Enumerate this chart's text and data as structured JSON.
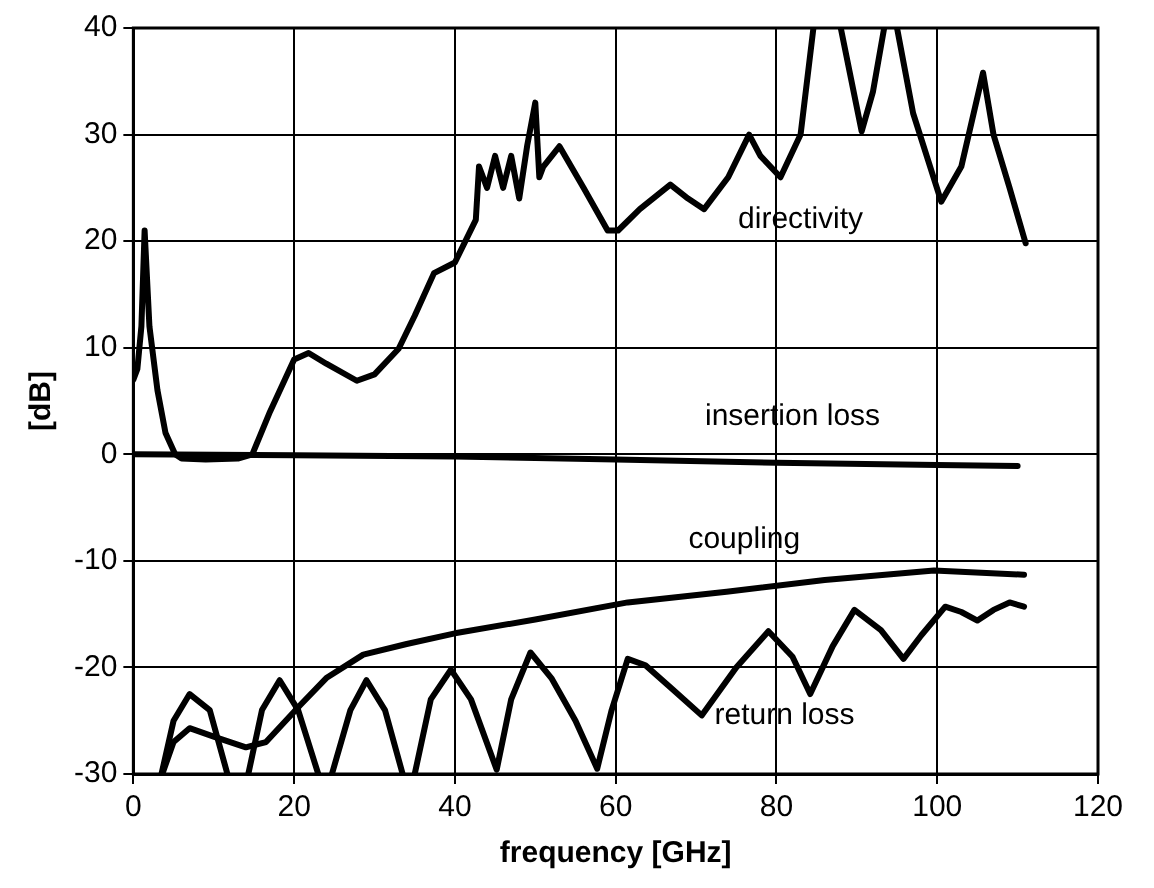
{
  "chart_data": {
    "type": "line",
    "xlabel": "frequency [GHz]",
    "ylabel": "[dB]",
    "xlim": [
      0,
      120
    ],
    "xticks": [
      0,
      20,
      40,
      60,
      80,
      100,
      120
    ],
    "ylim": [
      -30,
      40
    ],
    "yticks": [
      -30,
      -20,
      -10,
      0,
      10,
      20,
      30,
      40
    ],
    "grid": true,
    "legend": false,
    "marker": "none",
    "line_style": "solid",
    "series": [
      {
        "name": "directivity",
        "color": "#000000",
        "x": [
          0,
          0.5,
          1,
          1.4,
          2,
          3,
          4,
          5.2,
          6,
          9,
          13,
          14.8,
          17,
          20,
          21.8,
          24,
          27.8,
          30,
          33,
          35,
          37.4,
          40,
          42.6,
          43,
          44,
          45,
          46,
          47,
          48,
          49,
          50,
          50.5,
          51,
          53,
          56,
          59,
          60.3,
          63,
          66.8,
          69,
          71,
          74,
          76.6,
          78,
          80.5,
          83,
          84.6,
          85,
          86,
          87.4,
          88,
          90.6,
          92,
          93.4,
          94,
          95,
          97,
          100.5,
          103,
          105.7,
          107,
          109,
          111
        ],
        "values": [
          7,
          8,
          12,
          21,
          12,
          6,
          2,
          0,
          -0.4,
          -0.5,
          -0.4,
          0,
          4,
          8.9,
          9.5,
          8.5,
          6.9,
          7.5,
          9.9,
          13,
          17,
          18,
          22,
          27,
          25,
          28,
          25,
          28,
          24,
          29,
          33,
          26,
          27,
          28.9,
          25,
          21,
          21,
          23,
          25.3,
          24,
          23,
          26,
          30,
          28,
          26,
          30,
          40,
          null,
          null,
          null,
          40,
          30.3,
          34,
          40,
          null,
          40,
          32,
          23.7,
          27,
          35.8,
          30,
          25,
          19.8
        ]
      },
      {
        "name": "insertion loss",
        "color": "#000000",
        "x": [
          0,
          20,
          40,
          60,
          80,
          100,
          110
        ],
        "values": [
          0,
          -0.1,
          -0.2,
          -0.5,
          -0.8,
          -1,
          -1.1
        ]
      },
      {
        "name": "coupling",
        "color": "#000000",
        "x": [
          3.6,
          5,
          7,
          10,
          14,
          16.5,
          20.8,
          24,
          28.6,
          34,
          40,
          50,
          61.5,
          73.8,
          86,
          99.6,
          110.8
        ],
        "values": [
          -30,
          -27,
          -25.7,
          -26.5,
          -27.5,
          -27,
          -23.5,
          -21,
          -18.8,
          -17.8,
          -16.8,
          -15.5,
          -13.9,
          -12.9,
          -11.8,
          -10.9,
          -11.3
        ]
      },
      {
        "name": "return loss",
        "color": "#000000",
        "x": [
          3.5,
          5,
          7,
          9.5,
          11.7,
          12,
          14,
          14.3,
          16,
          18.2,
          20.5,
          23,
          23.5,
          24.5,
          24.7,
          27,
          29,
          31.3,
          33.5,
          34,
          34.8,
          35,
          37,
          39.5,
          42,
          45.2,
          47,
          49.4,
          52,
          55,
          57.7,
          59.5,
          61.5,
          63.7,
          67,
          70.7,
          75,
          79,
          82,
          84.2,
          87,
          89.7,
          93,
          95.8,
          98,
          101,
          103,
          105,
          107,
          109,
          110.8
        ],
        "values": [
          -30,
          -25,
          -22.5,
          -24,
          -30,
          null,
          null,
          -30,
          -24,
          -21.2,
          -24,
          -30,
          null,
          null,
          -30,
          -24,
          -21.2,
          -24,
          -30,
          null,
          null,
          -30,
          -23,
          -20.2,
          -23,
          -29.6,
          -23,
          -18.6,
          -21,
          -25,
          -29.5,
          -24,
          -19.2,
          -19.8,
          -22,
          -24.5,
          -20,
          -16.6,
          -19,
          -22.5,
          -18,
          -14.6,
          -16.5,
          -19.2,
          -17,
          -14.3,
          -14.8,
          -15.6,
          -14.6,
          -13.9,
          -14.3
        ]
      }
    ]
  }
}
